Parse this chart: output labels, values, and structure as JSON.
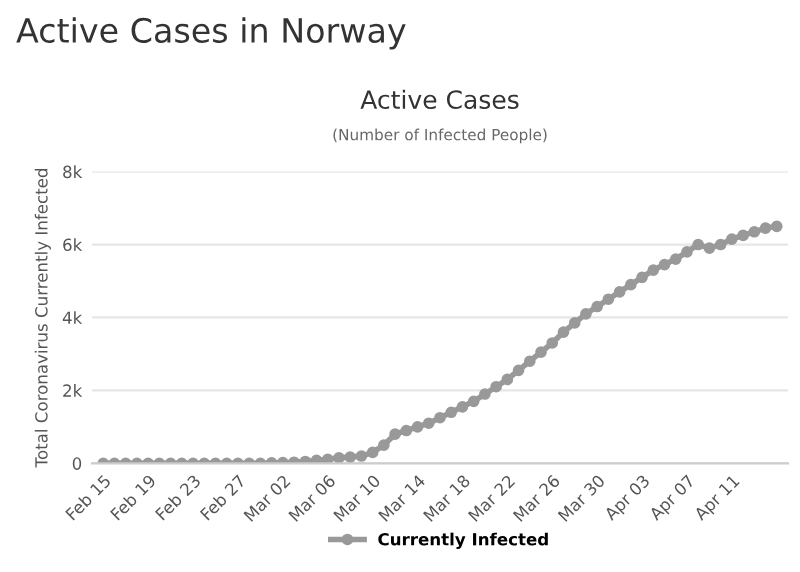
{
  "chart_data": {
    "type": "line",
    "title": "Active Cases in Norway",
    "subtitle": "Active Cases",
    "annotations": [
      "(Number of Infected People)"
    ],
    "ylabel": "Total Coronavirus Currently Infected",
    "categories": [
      "Feb 15",
      null,
      null,
      null,
      "Feb 19",
      null,
      null,
      null,
      "Feb 23",
      null,
      null,
      null,
      "Feb 27",
      null,
      null,
      null,
      "Mar 02",
      null,
      null,
      null,
      "Mar 06",
      null,
      null,
      null,
      "Mar 10",
      null,
      null,
      null,
      "Mar 14",
      null,
      null,
      null,
      "Mar 18",
      null,
      null,
      null,
      "Mar 22",
      null,
      null,
      null,
      "Mar 26",
      null,
      null,
      null,
      "Mar 30",
      null,
      null,
      null,
      "Apr 03",
      null,
      null,
      null,
      "Apr 07",
      null,
      null,
      null,
      "Apr 11",
      null,
      null,
      null,
      null
    ],
    "series": [
      {
        "name": "Currently Infected",
        "color": "#999999",
        "values": [
          0,
          0,
          0,
          0,
          0,
          0,
          0,
          0,
          0,
          0,
          0,
          0,
          0,
          0,
          0,
          10,
          20,
          30,
          50,
          80,
          110,
          150,
          170,
          200,
          300,
          500,
          800,
          900,
          1000,
          1100,
          1250,
          1400,
          1550,
          1700,
          1900,
          2100,
          2300,
          2550,
          2800,
          3050,
          3300,
          3600,
          3850,
          4100,
          4300,
          4500,
          4700,
          4900,
          5100,
          5300,
          5450,
          5600,
          5800,
          6000,
          5900,
          6000,
          6150,
          6250,
          6350,
          6450,
          6500
        ]
      }
    ],
    "ylim": [
      0,
      8000
    ],
    "yticks": [
      0,
      {
        "value": 2000,
        "label": "2k"
      },
      {
        "value": 4000,
        "label": "4k"
      },
      {
        "value": 6000,
        "label": "6k"
      },
      {
        "value": 8000,
        "label": "8k"
      }
    ],
    "grid": "y",
    "legend": "bottom",
    "marker": "circle",
    "line_style": "solid"
  }
}
